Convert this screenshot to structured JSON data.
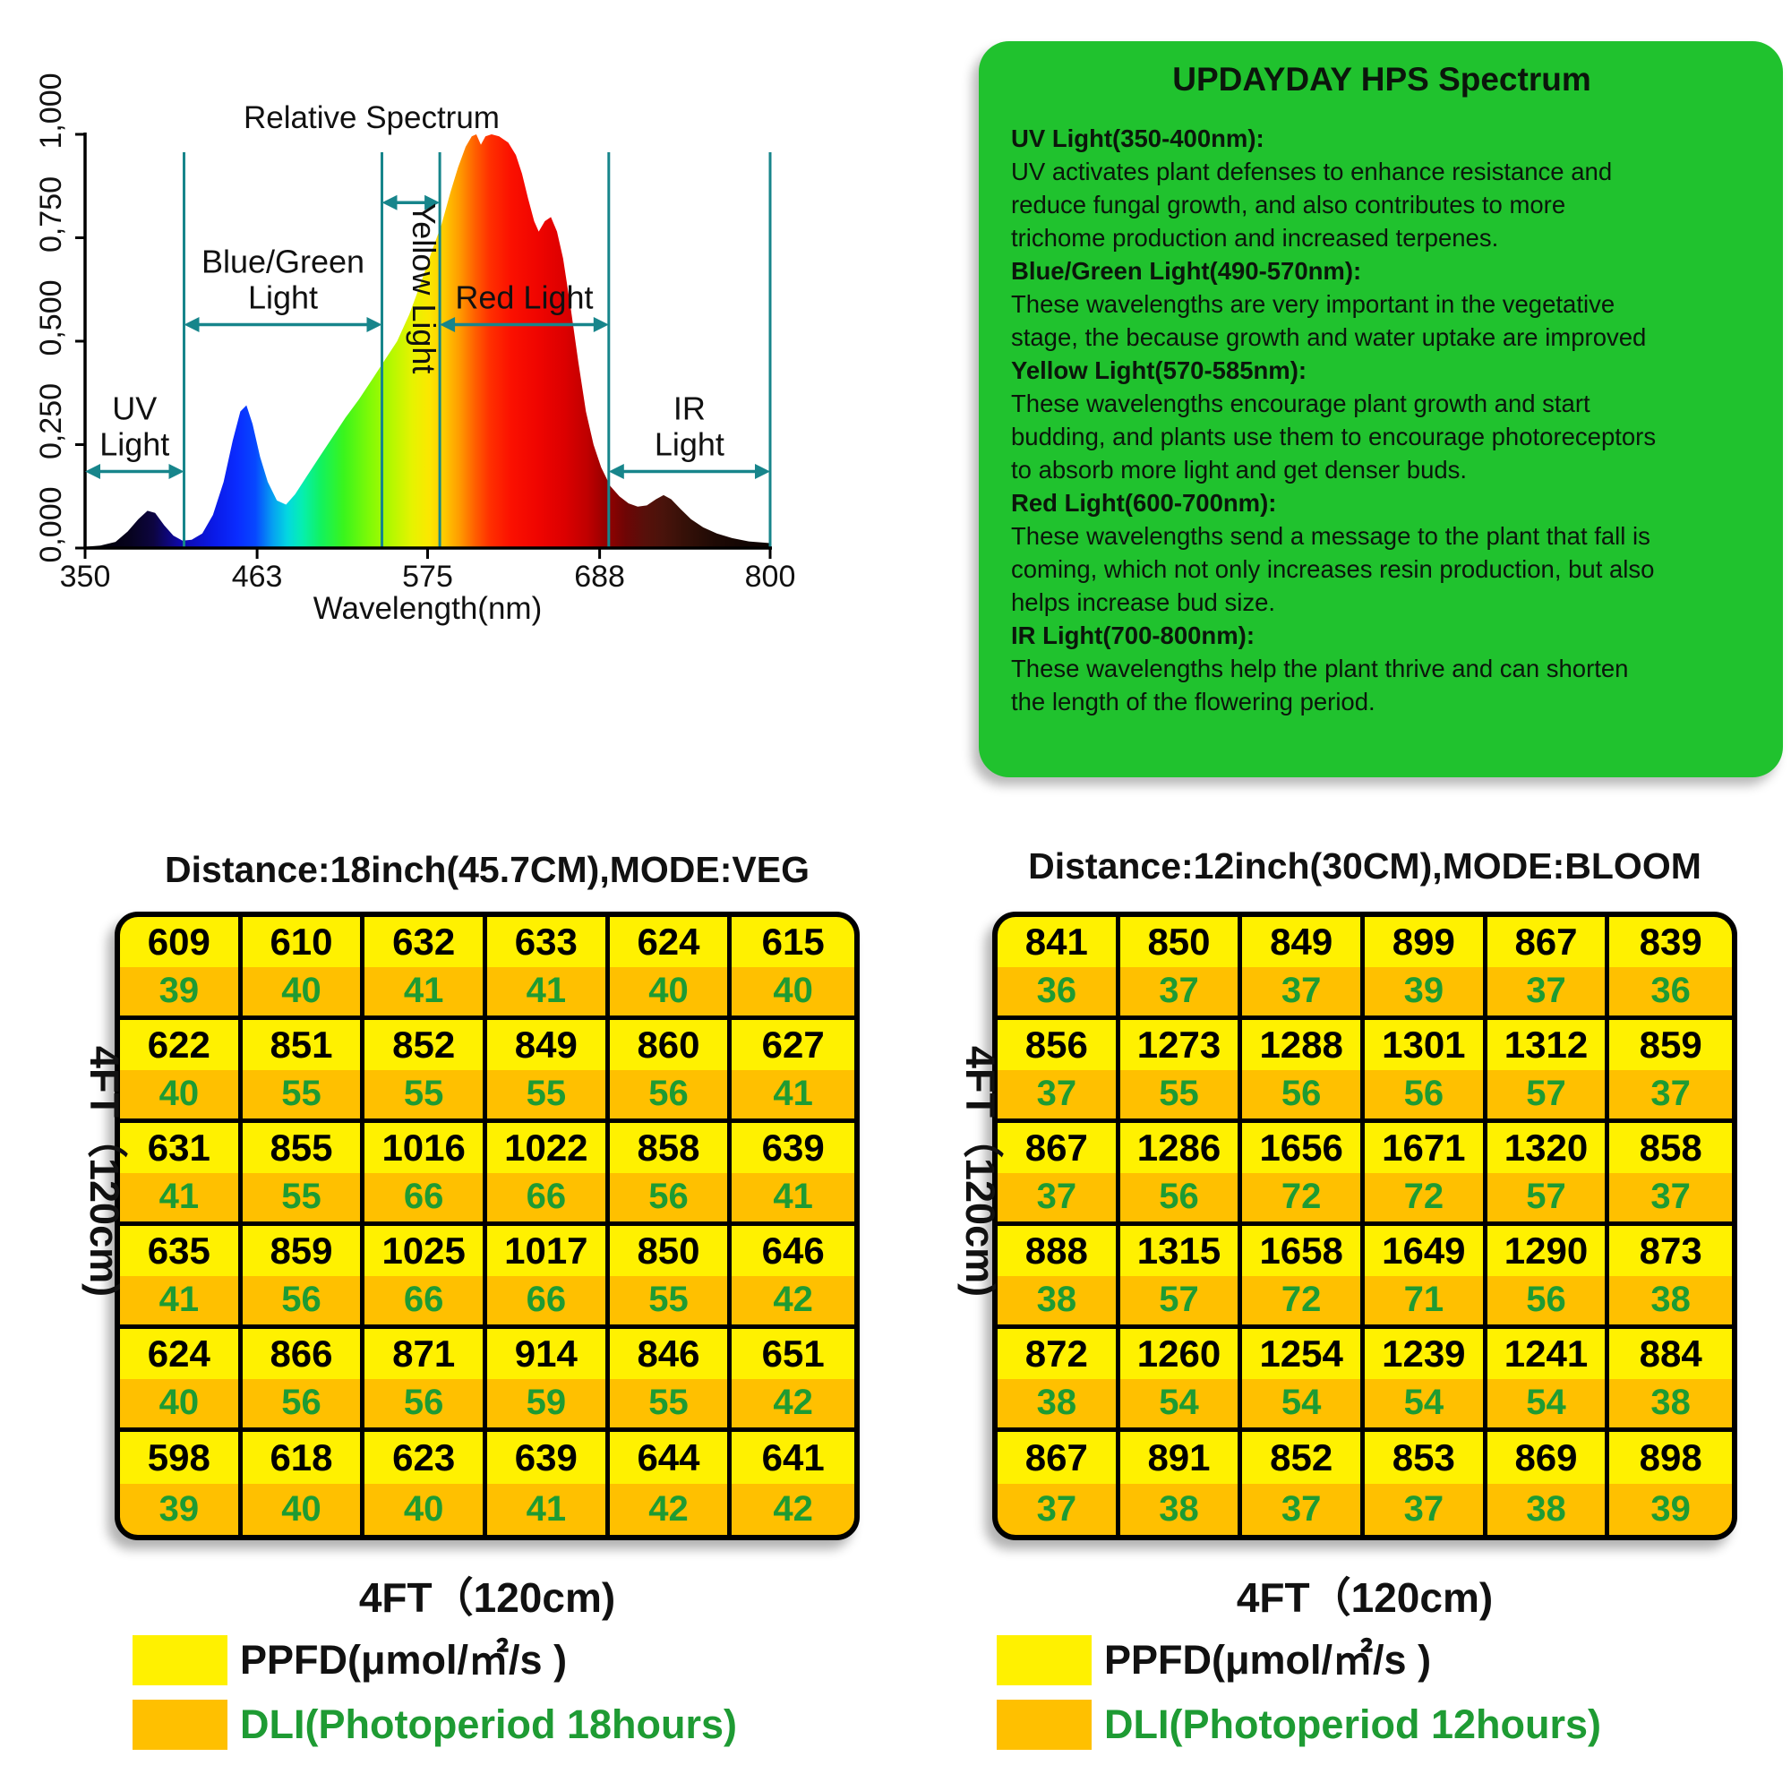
{
  "colors": {
    "panel_green": "#20c22e",
    "cell_yellow": "#fff100",
    "cell_orange": "#ffc000",
    "dli_green": "#1e9b33",
    "teal": "#17858b"
  },
  "chart_data": {
    "type": "area",
    "title": "Relative Spectrum",
    "xlabel": "Wavelength(nm)",
    "ylabel": "",
    "xlim": [
      350,
      800
    ],
    "ylim": [
      0,
      1
    ],
    "grid": false,
    "x_ticks": [
      "350",
      "463",
      "575",
      "688",
      "800"
    ],
    "y_ticks": [
      {
        "v": 0,
        "label": "0,000"
      },
      {
        "v": 0.25,
        "label": "0,250"
      },
      {
        "v": 0.5,
        "label": "0,500"
      },
      {
        "v": 0.75,
        "label": "0,750"
      },
      {
        "v": 1,
        "label": "1,000"
      }
    ],
    "regions": [
      {
        "name": "UV Light",
        "label_lines": [
          "UV",
          "Light"
        ],
        "range_nm": [
          350,
          415
        ],
        "arrow_v": 0.185,
        "orientation": "horizontal"
      },
      {
        "name": "Blue/Green Light",
        "label_lines": [
          "Blue/Green",
          "Light"
        ],
        "range_nm": [
          415,
          545
        ],
        "arrow_v": 0.54,
        "orientation": "horizontal"
      },
      {
        "name": "Yellow Light",
        "label_lines": [
          "Yellow Light"
        ],
        "range_nm": [
          545,
          583
        ],
        "arrow_v": 0.835,
        "orientation": "vertical"
      },
      {
        "name": "Red Light",
        "label_lines": [
          "Red Light"
        ],
        "range_nm": [
          583,
          694
        ],
        "arrow_v": 0.54,
        "orientation": "horizontal"
      },
      {
        "name": "IR Light",
        "label_lines": [
          "IR",
          "Light"
        ],
        "range_nm": [
          694,
          800
        ],
        "arrow_v": 0.185,
        "orientation": "horizontal"
      }
    ],
    "curve": [
      [
        350,
        0.003
      ],
      [
        360,
        0.006
      ],
      [
        370,
        0.015
      ],
      [
        378,
        0.04
      ],
      [
        385,
        0.07
      ],
      [
        391,
        0.09
      ],
      [
        396,
        0.085
      ],
      [
        402,
        0.055
      ],
      [
        408,
        0.03
      ],
      [
        414,
        0.018
      ],
      [
        420,
        0.02
      ],
      [
        427,
        0.035
      ],
      [
        434,
        0.08
      ],
      [
        441,
        0.16
      ],
      [
        447,
        0.26
      ],
      [
        452,
        0.33
      ],
      [
        456,
        0.345
      ],
      [
        460,
        0.3
      ],
      [
        465,
        0.22
      ],
      [
        470,
        0.16
      ],
      [
        476,
        0.115
      ],
      [
        482,
        0.105
      ],
      [
        488,
        0.13
      ],
      [
        495,
        0.17
      ],
      [
        503,
        0.215
      ],
      [
        512,
        0.265
      ],
      [
        521,
        0.315
      ],
      [
        530,
        0.36
      ],
      [
        539,
        0.41
      ],
      [
        547,
        0.455
      ],
      [
        555,
        0.5
      ],
      [
        563,
        0.565
      ],
      [
        571,
        0.645
      ],
      [
        578,
        0.72
      ],
      [
        584,
        0.78
      ],
      [
        590,
        0.86
      ],
      [
        595,
        0.92
      ],
      [
        600,
        0.97
      ],
      [
        604,
        0.995
      ],
      [
        607,
        1.0
      ],
      [
        610,
        0.975
      ],
      [
        613,
        0.995
      ],
      [
        617,
        1.0
      ],
      [
        622,
        0.995
      ],
      [
        628,
        0.98
      ],
      [
        633,
        0.95
      ],
      [
        637,
        0.905
      ],
      [
        641,
        0.845
      ],
      [
        645,
        0.79
      ],
      [
        648,
        0.765
      ],
      [
        652,
        0.79
      ],
      [
        656,
        0.8
      ],
      [
        660,
        0.765
      ],
      [
        664,
        0.7
      ],
      [
        669,
        0.58
      ],
      [
        674,
        0.45
      ],
      [
        679,
        0.33
      ],
      [
        684,
        0.25
      ],
      [
        689,
        0.195
      ],
      [
        695,
        0.15
      ],
      [
        701,
        0.125
      ],
      [
        707,
        0.108
      ],
      [
        713,
        0.1
      ],
      [
        719,
        0.103
      ],
      [
        725,
        0.118
      ],
      [
        730,
        0.128
      ],
      [
        735,
        0.118
      ],
      [
        741,
        0.095
      ],
      [
        748,
        0.07
      ],
      [
        756,
        0.05
      ],
      [
        765,
        0.035
      ],
      [
        775,
        0.024
      ],
      [
        786,
        0.016
      ],
      [
        800,
        0.012
      ]
    ],
    "gradient_stops": [
      [
        350,
        "#000000"
      ],
      [
        378,
        "#06031c"
      ],
      [
        395,
        "#0d0540"
      ],
      [
        412,
        "#0e08a8"
      ],
      [
        435,
        "#0a1ae8"
      ],
      [
        450,
        "#0a2cff"
      ],
      [
        462,
        "#0748ff"
      ],
      [
        473,
        "#069ff2"
      ],
      [
        483,
        "#03d8e0"
      ],
      [
        493,
        "#06efae"
      ],
      [
        505,
        "#12f25e"
      ],
      [
        520,
        "#3af51c"
      ],
      [
        537,
        "#80fa06"
      ],
      [
        552,
        "#b8f800"
      ],
      [
        565,
        "#e6f300"
      ],
      [
        576,
        "#fbe800"
      ],
      [
        586,
        "#ffc900"
      ],
      [
        596,
        "#ff9b00"
      ],
      [
        606,
        "#ff6000"
      ],
      [
        616,
        "#ff2f00"
      ],
      [
        630,
        "#fb1000"
      ],
      [
        648,
        "#ef0400"
      ],
      [
        665,
        "#dc0000"
      ],
      [
        680,
        "#bf0000"
      ],
      [
        693,
        "#930100"
      ],
      [
        705,
        "#6e0505"
      ],
      [
        718,
        "#57100a"
      ],
      [
        730,
        "#49130b"
      ],
      [
        745,
        "#341008"
      ],
      [
        764,
        "#1f0a05"
      ],
      [
        783,
        "#130604"
      ],
      [
        800,
        "#0c0302"
      ]
    ]
  },
  "panel": {
    "title": "UPDAYDAY HPS Spectrum",
    "lines": [
      {
        "t": "UV Light(350-400nm):",
        "b": true
      },
      {
        "t": "UV activates plant defenses to enhance resistance and",
        "b": false
      },
      {
        "t": "reduce fungal growth, and also contributes to more",
        "b": false
      },
      {
        "t": "trichome production and increased terpenes.",
        "b": false
      },
      {
        "t": "Blue/Green Light(490-570nm):",
        "b": true
      },
      {
        "t": "These wavelengths are very important in the vegetative",
        "b": false
      },
      {
        "t": "stage, the because growth and water uptake are improved",
        "b": false
      },
      {
        "t": "Yellow Light(570-585nm):",
        "b": true
      },
      {
        "t": "These wavelengths encourage plant growth and start",
        "b": false
      },
      {
        "t": "budding, and plants use them to encourage photoreceptors",
        "b": false
      },
      {
        "t": "to absorb more light and get denser buds.",
        "b": false
      },
      {
        "t": "Red Light(600-700nm):",
        "b": true
      },
      {
        "t": "These wavelengths send a message to the plant that fall is",
        "b": false
      },
      {
        "t": "coming, which not only increases resin production, but also",
        "b": false
      },
      {
        "t": "helps increase bud size.",
        "b": false
      },
      {
        "t": "IR Light(700-800nm):",
        "b": true
      },
      {
        "t": "These wavelengths help the plant thrive and can shorten",
        "b": false
      },
      {
        "t": "the length of the flowering period.",
        "b": false
      }
    ]
  },
  "veg": {
    "title": "Distance:18inch(45.7CM),MODE:VEG",
    "side_label": "4FT（120cm)",
    "bottom_label": "4FT（120cm)",
    "legend_ppfd": "PPFD(μmol/㎡/s )",
    "legend_dli": "DLI(Photoperiod 18hours)",
    "rows": [
      {
        "ppfd": [
          609,
          610,
          632,
          633,
          624,
          615
        ],
        "dli": [
          39,
          40,
          41,
          41,
          40,
          40
        ]
      },
      {
        "ppfd": [
          622,
          851,
          852,
          849,
          860,
          627
        ],
        "dli": [
          40,
          55,
          55,
          55,
          56,
          41
        ]
      },
      {
        "ppfd": [
          631,
          855,
          1016,
          1022,
          858,
          639
        ],
        "dli": [
          41,
          55,
          66,
          66,
          56,
          41
        ]
      },
      {
        "ppfd": [
          635,
          859,
          1025,
          1017,
          850,
          646
        ],
        "dli": [
          41,
          56,
          66,
          66,
          55,
          42
        ]
      },
      {
        "ppfd": [
          624,
          866,
          871,
          914,
          846,
          651
        ],
        "dli": [
          40,
          56,
          56,
          59,
          55,
          42
        ]
      },
      {
        "ppfd": [
          598,
          618,
          623,
          639,
          644,
          641
        ],
        "dli": [
          39,
          40,
          40,
          41,
          42,
          42
        ]
      }
    ]
  },
  "bloom": {
    "title": "Distance:12inch(30CM),MODE:BLOOM",
    "side_label": "4FT（120cm)",
    "bottom_label": "4FT（120cm)",
    "legend_ppfd": "PPFD(μmol/㎡/s )",
    "legend_dli": "DLI(Photoperiod 12hours)",
    "rows": [
      {
        "ppfd": [
          841,
          850,
          849,
          899,
          867,
          839
        ],
        "dli": [
          36,
          37,
          37,
          39,
          37,
          36
        ]
      },
      {
        "ppfd": [
          856,
          1273,
          1288,
          1301,
          1312,
          859
        ],
        "dli": [
          37,
          55,
          56,
          56,
          57,
          37
        ]
      },
      {
        "ppfd": [
          867,
          1286,
          1656,
          1671,
          1320,
          858
        ],
        "dli": [
          37,
          56,
          72,
          72,
          57,
          37
        ]
      },
      {
        "ppfd": [
          888,
          1315,
          1658,
          1649,
          1290,
          873
        ],
        "dli": [
          38,
          57,
          72,
          71,
          56,
          38
        ]
      },
      {
        "ppfd": [
          872,
          1260,
          1254,
          1239,
          1241,
          884
        ],
        "dli": [
          38,
          54,
          54,
          54,
          54,
          38
        ]
      },
      {
        "ppfd": [
          867,
          891,
          852,
          853,
          869,
          898
        ],
        "dli": [
          37,
          38,
          37,
          37,
          38,
          39
        ]
      }
    ]
  }
}
